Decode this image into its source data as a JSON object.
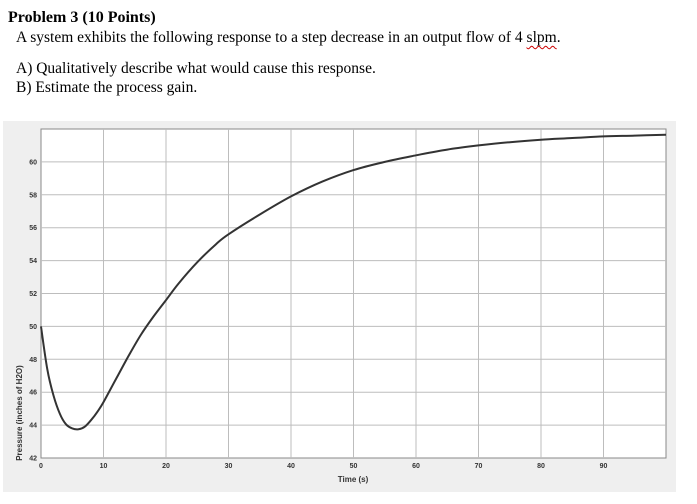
{
  "problem": {
    "title": "Problem 3 (10 Points)",
    "statement_prefix": "A system exhibits the following response to a step decrease in an output flow of 4 ",
    "statement_unit": "slpm",
    "statement_suffix": ".",
    "part_a": "A) Qualitatively describe what would cause this response.",
    "part_b": "B) Estimate the process gain."
  },
  "chart_data": {
    "type": "line",
    "title": "",
    "xlabel": "Time (s)",
    "ylabel": "Pressure (inches of H2O)",
    "xlim": [
      0,
      100
    ],
    "ylim": [
      42,
      62
    ],
    "xticks": [
      0,
      10,
      20,
      30,
      40,
      50,
      60,
      70,
      80,
      90
    ],
    "yticks": [
      42,
      44,
      46,
      48,
      50,
      52,
      54,
      56,
      58,
      60
    ],
    "grid": true,
    "line_color": "#333333",
    "series": [
      {
        "x": [
          0,
          1,
          2,
          3,
          4,
          5,
          6,
          7,
          8,
          9,
          10,
          12,
          14,
          16,
          18,
          20,
          22,
          25,
          28,
          30,
          35,
          40,
          45,
          50,
          55,
          60,
          65,
          70,
          75,
          80,
          85,
          90,
          95,
          100
        ],
        "values": [
          50.0,
          47.4,
          45.8,
          44.7,
          44.05,
          43.8,
          43.75,
          43.9,
          44.3,
          44.8,
          45.4,
          46.8,
          48.2,
          49.5,
          50.6,
          51.6,
          52.6,
          53.9,
          55.0,
          55.6,
          56.8,
          57.9,
          58.8,
          59.5,
          60.0,
          60.4,
          60.75,
          61.0,
          61.2,
          61.35,
          61.45,
          61.55,
          61.6,
          61.65
        ]
      }
    ]
  }
}
